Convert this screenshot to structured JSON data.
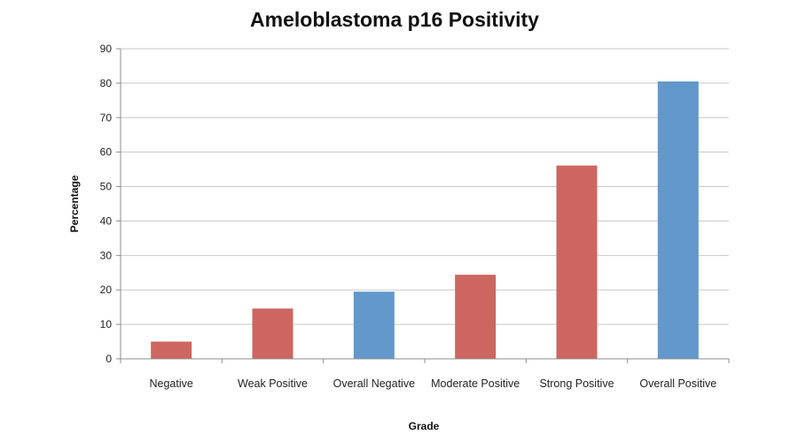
{
  "chart_data": {
    "type": "bar",
    "title": "Ameloblastoma p16 Positivity",
    "xlabel": "Grade",
    "ylabel": "Percentage",
    "categories": [
      "Negative",
      "Weak Positive",
      "Overall Negative",
      "Moderate Positive",
      "Strong Positive",
      "Overall Positive"
    ],
    "values": [
      5,
      14.6,
      19.5,
      24.4,
      56.1,
      80.5
    ],
    "bar_colors": [
      "#cd6660",
      "#cd6660",
      "#6298cb",
      "#cd6660",
      "#cd6660",
      "#6298cb"
    ],
    "ylim": [
      0,
      90
    ],
    "yticks": [
      0,
      10,
      20,
      30,
      40,
      50,
      60,
      70,
      80,
      90
    ],
    "grid": true,
    "legend": "none"
  }
}
